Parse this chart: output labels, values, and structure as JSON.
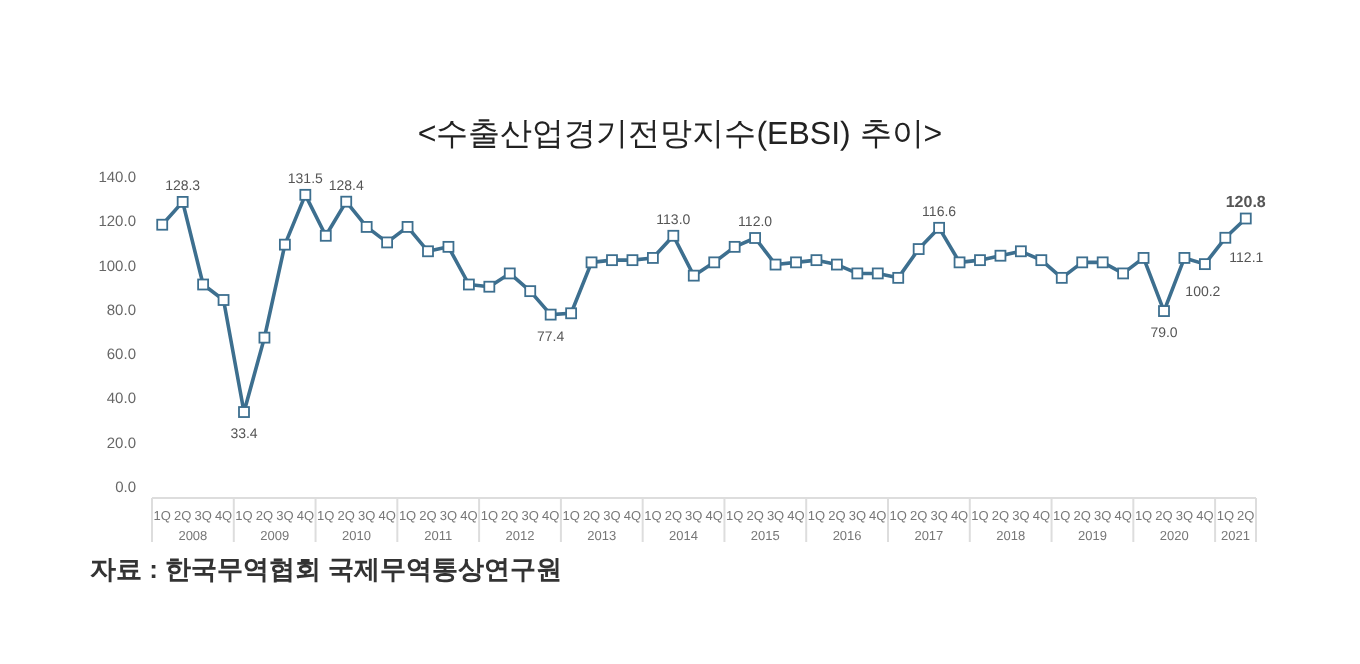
{
  "chart_data": {
    "type": "line",
    "title": "<수출산업경기전망지수(EBSI)  추이>",
    "categories": [
      "1Q",
      "2Q",
      "3Q",
      "4Q",
      "1Q",
      "2Q",
      "3Q",
      "4Q",
      "1Q",
      "2Q",
      "3Q",
      "4Q",
      "1Q",
      "2Q",
      "3Q",
      "4Q",
      "1Q",
      "2Q",
      "3Q",
      "4Q",
      "1Q",
      "2Q",
      "3Q",
      "4Q",
      "1Q",
      "2Q",
      "3Q",
      "4Q",
      "1Q",
      "2Q",
      "3Q",
      "4Q",
      "1Q",
      "2Q",
      "3Q",
      "4Q",
      "1Q",
      "2Q",
      "3Q",
      "4Q",
      "1Q",
      "2Q",
      "3Q",
      "4Q",
      "1Q",
      "2Q",
      "3Q",
      "4Q",
      "1Q",
      "2Q",
      "3Q",
      "4Q",
      "1Q",
      "2Q"
    ],
    "series": [
      {
        "color": "#3d6f8f",
        "values": [
          118,
          128.3,
          91,
          84,
          33.4,
          67,
          109,
          131.5,
          113,
          128.4,
          117,
          110,
          117,
          106,
          108,
          91,
          90,
          96,
          88,
          77.4,
          78,
          101,
          102,
          102,
          103,
          113.0,
          95,
          101,
          108,
          112.0,
          100,
          101,
          102,
          100,
          96,
          96,
          94,
          107,
          116.6,
          101,
          102,
          104,
          106,
          102,
          94,
          101,
          101,
          96,
          103,
          79.0,
          103,
          100.2,
          112.1,
          120.8
        ],
        "value_labels": [
          null,
          "128.3",
          null,
          null,
          "33.4",
          null,
          null,
          "131.5",
          null,
          "128.4",
          null,
          null,
          null,
          null,
          null,
          null,
          null,
          null,
          null,
          "77.4",
          null,
          null,
          null,
          null,
          null,
          "113.0",
          null,
          null,
          null,
          "112.0",
          null,
          null,
          null,
          null,
          null,
          null,
          null,
          null,
          "116.6",
          null,
          null,
          null,
          null,
          null,
          null,
          null,
          null,
          null,
          null,
          "79.0",
          null,
          "100.2",
          "112.1",
          "120.8"
        ]
      }
    ],
    "ylim": [
      0,
      140
    ],
    "yticks": [
      {
        "value": 0,
        "label": "0.0"
      },
      {
        "value": 20,
        "label": "20.0"
      },
      {
        "value": 40,
        "label": "40.0"
      },
      {
        "value": 60,
        "label": "60.0"
      },
      {
        "value": 80,
        "label": "80.0"
      },
      {
        "value": 100,
        "label": "100.0"
      },
      {
        "value": 120,
        "label": "120.0"
      },
      {
        "value": 140,
        "label": "140.0"
      }
    ],
    "marker": "square",
    "line_style": "solid",
    "grid": false,
    "annotations": [
      "2008",
      "2009",
      "2010",
      "2011",
      "2012",
      "2013",
      "2014",
      "2015",
      "2016",
      "2017",
      "2018",
      "2019",
      "2020",
      "2021",
      "자료 : 한국무역협회 국제무역통상연구원"
    ]
  }
}
